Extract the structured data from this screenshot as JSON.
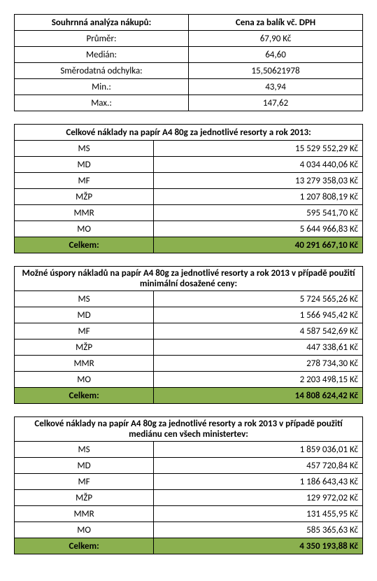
{
  "colors": {
    "border": "#000000",
    "background": "#ffffff",
    "highlight": "#8bb04f"
  },
  "summary": {
    "header_left": "Souhrnná analýza nákupů:",
    "header_right": "Cena za balík vč. DPH",
    "rows": [
      {
        "label": "Průměr:",
        "value": "67,90 Kč"
      },
      {
        "label": "Medián:",
        "value": "64,60"
      },
      {
        "label": "Směrodatná odchylka:",
        "value": "15,50621978"
      },
      {
        "label": "Min.:",
        "value": "43,94"
      },
      {
        "label": "Max.:",
        "value": "147,62"
      }
    ]
  },
  "sections": [
    {
      "title": "Celkové náklady na papír A4 80g za jednotlivé resorty a rok 2013:",
      "rows": [
        {
          "label": "MS",
          "value": "15 529 552,29 Kč"
        },
        {
          "label": "MD",
          "value": "4 034 440,06 Kč"
        },
        {
          "label": "MF",
          "value": "13 279 358,03 Kč"
        },
        {
          "label": "MŽP",
          "value": "1 207 808,19 Kč"
        },
        {
          "label": "MMR",
          "value": "595 541,70 Kč"
        },
        {
          "label": "MO",
          "value": "5 644 966,83 Kč"
        }
      ],
      "total_label": "Celkem:",
      "total_value": "40 291 667,10 Kč"
    },
    {
      "title": "Možné úspory nákladů na papír A4 80g za jednotlivé resorty a rok 2013 v případě použití minimální dosažené ceny:",
      "rows": [
        {
          "label": "MS",
          "value": "5 724 565,26 Kč"
        },
        {
          "label": "MD",
          "value": "1 566 945,42 Kč"
        },
        {
          "label": "MF",
          "value": "4 587 542,69 Kč"
        },
        {
          "label": "MŽP",
          "value": "447 338,61 Kč"
        },
        {
          "label": "MMR",
          "value": "278 734,30 Kč"
        },
        {
          "label": "MO",
          "value": "2 203 498,15 Kč"
        }
      ],
      "total_label": "Celkem:",
      "total_value": "14 808 624,42 Kč"
    },
    {
      "title": "Celkové náklady na papír A4 80g za jednotlivé resorty a rok 2013 v případě použití mediánu cen všech ministertev:",
      "rows": [
        {
          "label": "MS",
          "value": "1 859 036,01 Kč"
        },
        {
          "label": "MD",
          "value": "457 720,84 Kč"
        },
        {
          "label": "MF",
          "value": "1 186 643,43 Kč"
        },
        {
          "label": "MŽP",
          "value": "129 972,02 Kč"
        },
        {
          "label": "MMR",
          "value": "131 455,95 Kč"
        },
        {
          "label": "MO",
          "value": "585 365,63 Kč"
        }
      ],
      "total_label": "Celkem:",
      "total_value": "4 350 193,88 Kč"
    }
  ]
}
